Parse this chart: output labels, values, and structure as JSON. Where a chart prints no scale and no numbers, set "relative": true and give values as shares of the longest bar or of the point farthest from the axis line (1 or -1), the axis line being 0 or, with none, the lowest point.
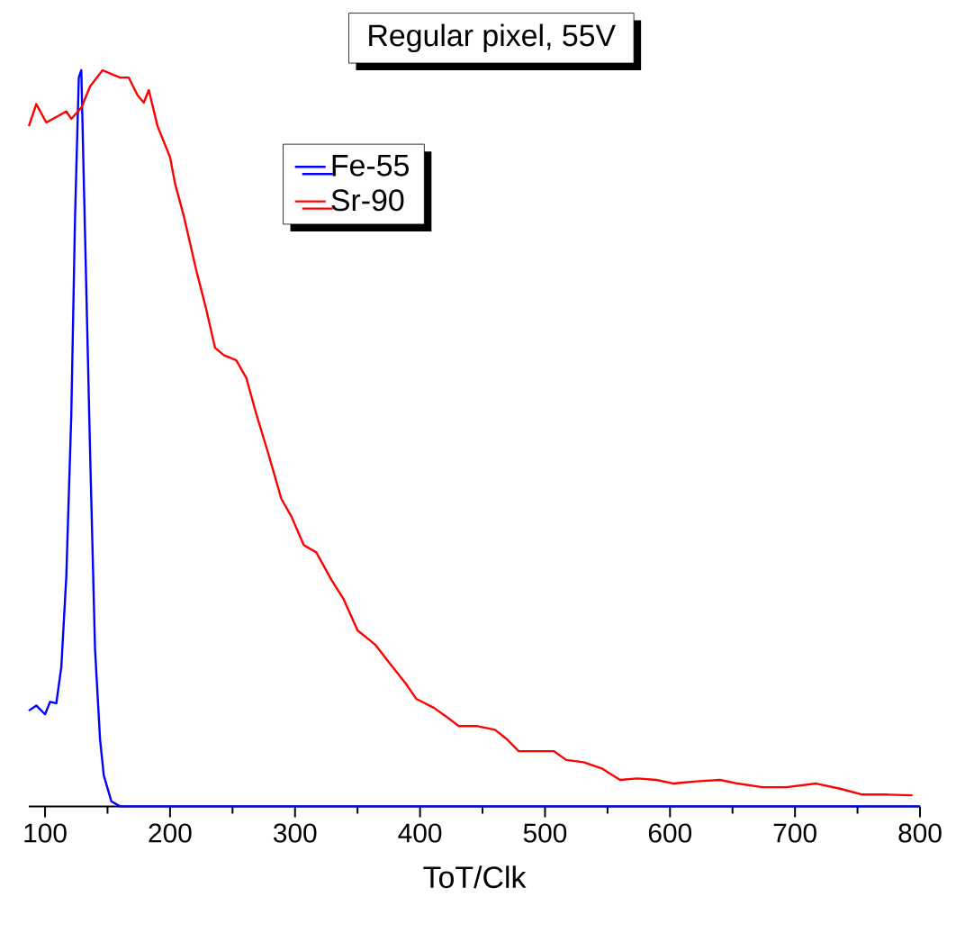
{
  "chart_data": {
    "type": "line",
    "title": "Regular pixel, 55V",
    "xlabel": "ToT/Clk",
    "relative": true,
    "legend": "top",
    "xlim": [
      87,
      800
    ],
    "xticks": [
      100,
      200,
      300,
      400,
      500,
      600,
      700,
      800
    ],
    "series": [
      {
        "name": "Fe-55",
        "color": "#0000ff",
        "x": [
          87,
          93,
          100,
          104,
          109,
          113,
          117,
          121,
          124,
          127,
          129,
          131,
          136,
          140,
          144,
          147,
          153,
          160,
          207,
          800
        ],
        "values": [
          0.13,
          0.137,
          0.125,
          0.142,
          0.14,
          0.189,
          0.312,
          0.532,
          0.801,
          0.99,
          1.0,
          0.85,
          0.483,
          0.213,
          0.091,
          0.042,
          0.007,
          0,
          0,
          0
        ]
      },
      {
        "name": "Sr-90",
        "color": "#ff0000",
        "x": [
          87,
          93,
          101,
          117,
          121,
          129,
          136,
          146,
          153,
          160,
          167,
          174,
          179,
          183,
          190,
          200,
          204,
          211,
          221,
          229,
          236,
          243,
          253,
          261,
          269,
          279,
          289,
          297,
          307,
          317,
          329,
          339,
          350,
          364,
          374,
          389,
          397,
          411,
          421,
          431,
          446,
          460,
          469,
          479,
          493,
          507,
          517,
          531,
          546,
          560,
          574,
          589,
          603,
          621,
          640,
          654,
          674,
          693,
          717,
          736,
          754,
          774,
          794
        ],
        "values": [
          0.924,
          0.954,
          0.929,
          0.944,
          0.934,
          0.949,
          0.978,
          1.0,
          0.995,
          0.99,
          0.99,
          0.966,
          0.956,
          0.973,
          0.924,
          0.882,
          0.846,
          0.802,
          0.728,
          0.675,
          0.623,
          0.613,
          0.606,
          0.582,
          0.533,
          0.477,
          0.418,
          0.394,
          0.355,
          0.345,
          0.308,
          0.281,
          0.239,
          0.22,
          0.198,
          0.166,
          0.146,
          0.134,
          0.122,
          0.109,
          0.109,
          0.104,
          0.092,
          0.075,
          0.075,
          0.075,
          0.063,
          0.06,
          0.051,
          0.036,
          0.038,
          0.036,
          0.031,
          0.034,
          0.036,
          0.031,
          0.026,
          0.026,
          0.031,
          0.024,
          0.016,
          0.016,
          0.015
        ]
      }
    ]
  }
}
